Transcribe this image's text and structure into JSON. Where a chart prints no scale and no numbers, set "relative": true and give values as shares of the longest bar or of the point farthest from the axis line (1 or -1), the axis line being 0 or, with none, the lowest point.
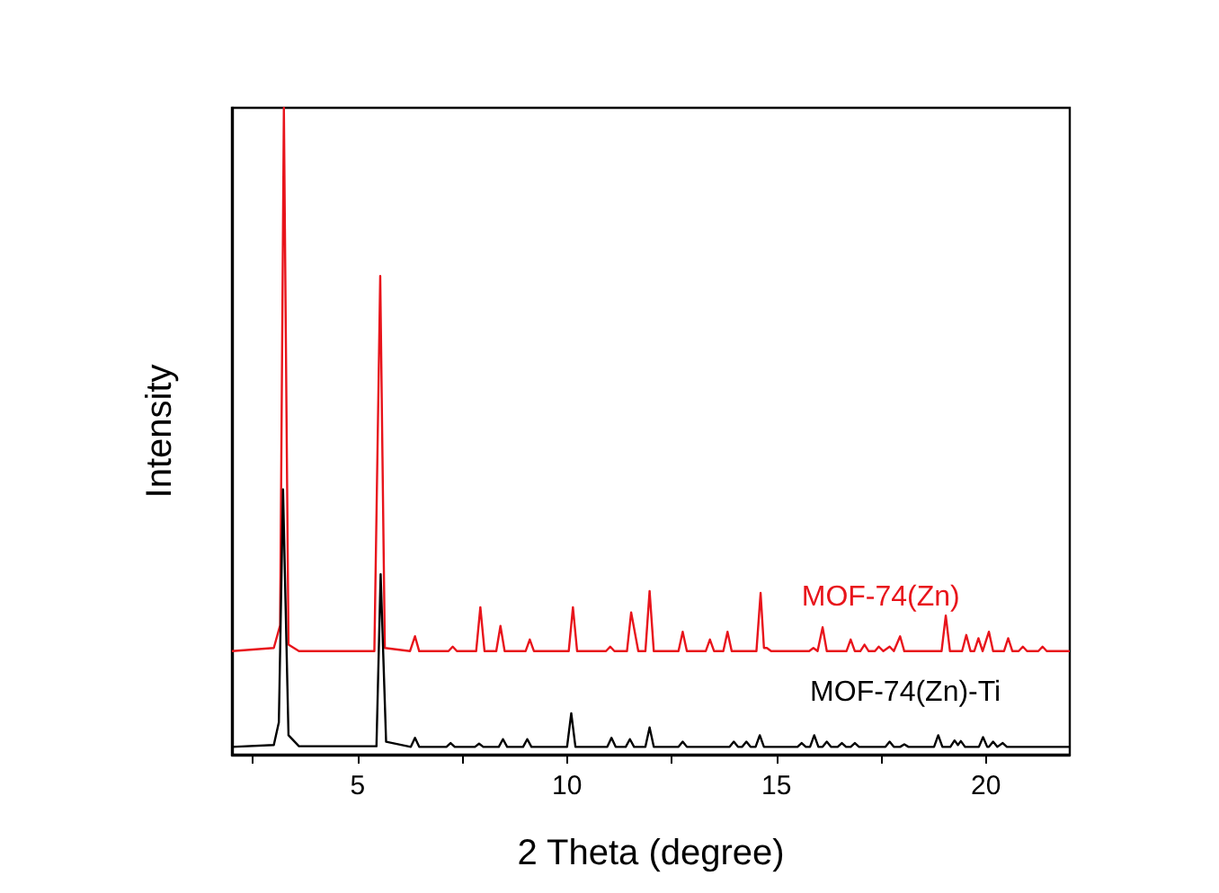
{
  "chart_data": {
    "type": "line",
    "relative": true,
    "xlabel": "2 Theta (degree)",
    "ylabel": "Intensity",
    "xlim": [
      2,
      22
    ],
    "xticks": [
      {
        "value": 2.5,
        "label": null
      },
      5,
      {
        "value": 7.5,
        "label": null
      },
      10,
      {
        "value": 12.5,
        "label": null
      },
      15,
      {
        "value": 17.5,
        "label": null
      },
      20
    ],
    "grid": false,
    "legend": false,
    "marker": "none",
    "line_style": "solid",
    "series": [
      {
        "name": "MOF-74(Zn)",
        "color": "#e8141b",
        "x": [
          2.0,
          3.0,
          3.15,
          3.24,
          3.35,
          3.6,
          5.4,
          5.54,
          5.65,
          6.25,
          6.37,
          6.47,
          7.17,
          7.27,
          7.37,
          7.83,
          7.93,
          8.03,
          8.31,
          8.41,
          8.51,
          9.01,
          9.11,
          9.21,
          10.04,
          10.14,
          10.24,
          10.93,
          11.03,
          11.13,
          11.43,
          11.53,
          11.7,
          11.87,
          11.97,
          12.07,
          12.66,
          12.76,
          12.86,
          13.31,
          13.41,
          13.51,
          13.73,
          13.83,
          13.93,
          14.52,
          14.62,
          14.7,
          14.77,
          14.87,
          15.78,
          15.88,
          15.98,
          16.1,
          16.2,
          16.67,
          16.77,
          16.87,
          17.0,
          17.1,
          17.2,
          17.35,
          17.44,
          17.55,
          17.7,
          17.8,
          17.95,
          18.05,
          18.94,
          19.04,
          19.14,
          19.43,
          19.53,
          19.63,
          19.72,
          19.82,
          19.92,
          20.07,
          20.17,
          20.43,
          20.53,
          20.63,
          20.78,
          20.88,
          20.98,
          21.25,
          21.35,
          21.45,
          22.0
        ],
        "values": [
          0.16,
          0.165,
          0.2,
          1.0,
          0.17,
          0.16,
          0.16,
          0.74,
          0.165,
          0.16,
          0.183,
          0.16,
          0.16,
          0.167,
          0.16,
          0.16,
          0.228,
          0.16,
          0.16,
          0.199,
          0.16,
          0.16,
          0.178,
          0.16,
          0.16,
          0.228,
          0.16,
          0.16,
          0.167,
          0.16,
          0.16,
          0.22,
          0.16,
          0.16,
          0.253,
          0.16,
          0.16,
          0.19,
          0.16,
          0.16,
          0.178,
          0.16,
          0.16,
          0.19,
          0.16,
          0.16,
          0.25,
          0.165,
          0.165,
          0.16,
          0.16,
          0.165,
          0.16,
          0.197,
          0.16,
          0.16,
          0.178,
          0.16,
          0.16,
          0.17,
          0.16,
          0.16,
          0.167,
          0.16,
          0.167,
          0.16,
          0.183,
          0.16,
          0.16,
          0.215,
          0.16,
          0.16,
          0.185,
          0.16,
          0.16,
          0.18,
          0.16,
          0.19,
          0.16,
          0.16,
          0.18,
          0.16,
          0.16,
          0.167,
          0.16,
          0.16,
          0.167,
          0.16,
          0.16
        ]
      },
      {
        "name": "MOF-74(Zn)-Ti",
        "color": "#000000",
        "x": [
          2.0,
          3.0,
          3.12,
          3.22,
          3.35,
          3.6,
          5.45,
          5.55,
          5.68,
          6.27,
          6.37,
          6.47,
          7.12,
          7.22,
          7.32,
          7.8,
          7.9,
          8.0,
          8.37,
          8.47,
          8.57,
          8.95,
          9.05,
          9.15,
          10.0,
          10.1,
          10.2,
          10.96,
          11.06,
          11.16,
          11.4,
          11.5,
          11.6,
          11.87,
          11.97,
          12.07,
          12.66,
          12.76,
          12.86,
          13.88,
          13.98,
          14.08,
          14.18,
          14.28,
          14.38,
          14.5,
          14.6,
          14.7,
          15.5,
          15.6,
          15.7,
          15.8,
          15.9,
          16.0,
          16.1,
          16.2,
          16.3,
          16.46,
          16.56,
          16.66,
          16.77,
          16.87,
          16.97,
          17.6,
          17.7,
          17.8,
          17.95,
          18.05,
          18.15,
          18.76,
          18.86,
          18.96,
          19.15,
          19.25,
          19.33,
          19.4,
          19.5,
          19.83,
          19.93,
          20.03,
          20.07,
          20.17,
          20.27,
          20.3,
          20.4,
          20.5,
          22.0
        ],
        "values": [
          0.012,
          0.015,
          0.05,
          0.41,
          0.03,
          0.013,
          0.013,
          0.279,
          0.02,
          0.012,
          0.026,
          0.012,
          0.012,
          0.018,
          0.012,
          0.012,
          0.017,
          0.012,
          0.012,
          0.024,
          0.012,
          0.012,
          0.024,
          0.012,
          0.012,
          0.064,
          0.012,
          0.012,
          0.026,
          0.012,
          0.012,
          0.024,
          0.012,
          0.012,
          0.042,
          0.012,
          0.012,
          0.02,
          0.012,
          0.012,
          0.02,
          0.012,
          0.012,
          0.02,
          0.012,
          0.012,
          0.03,
          0.012,
          0.012,
          0.018,
          0.012,
          0.012,
          0.03,
          0.012,
          0.012,
          0.02,
          0.012,
          0.012,
          0.018,
          0.012,
          0.012,
          0.018,
          0.012,
          0.012,
          0.02,
          0.012,
          0.012,
          0.016,
          0.012,
          0.012,
          0.03,
          0.012,
          0.012,
          0.022,
          0.015,
          0.021,
          0.012,
          0.012,
          0.027,
          0.012,
          0.012,
          0.02,
          0.012,
          0.012,
          0.018,
          0.012,
          0.012
        ]
      }
    ]
  }
}
